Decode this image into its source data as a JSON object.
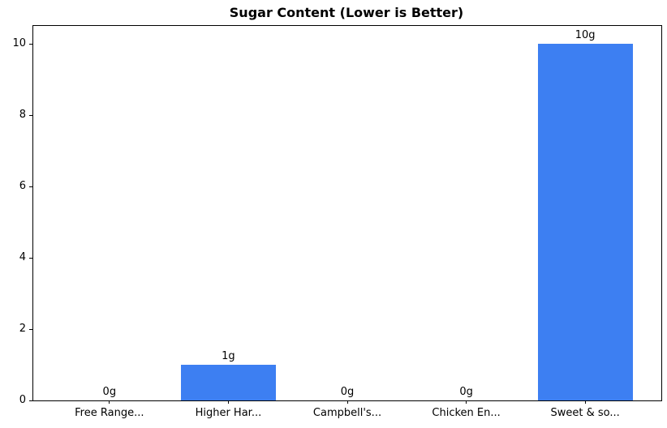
{
  "chart_data": {
    "type": "bar",
    "title": "Sugar Content (Lower is Better)",
    "categories": [
      "Free Range...",
      "Higher Har...",
      "Campbell's...",
      "Chicken En...",
      "Sweet & so..."
    ],
    "values": [
      0,
      1,
      0,
      0,
      10
    ],
    "bar_labels": [
      "0g",
      "1g",
      "0g",
      "0g",
      "10g"
    ],
    "xlabel": "",
    "ylabel": "",
    "ylim": [
      0,
      10.5
    ],
    "yticks": [
      0,
      2,
      4,
      6,
      8,
      10
    ],
    "bar_width_fraction": 0.8,
    "x_edge_pad_units": 0.64,
    "bar_color": "#3d7ff2",
    "axis_color": "#000000",
    "text_color": "#000000",
    "background_color": "#ffffff",
    "grid": false,
    "legend_position": "none"
  }
}
